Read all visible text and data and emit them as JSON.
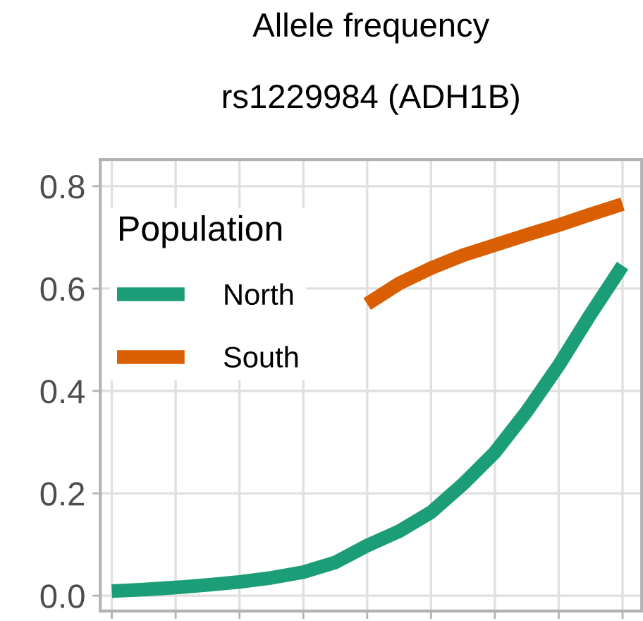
{
  "chart_data": {
    "type": "line",
    "title": "Allele frequency",
    "subtitle": "rs1229984 (ADH1B)",
    "legend_title": "Population",
    "categories": [
      null,
      null,
      null,
      null,
      null,
      null,
      null,
      null,
      null,
      null,
      null,
      null,
      null,
      null,
      null,
      null,
      null
    ],
    "series": [
      {
        "name": "North",
        "color": "#1b9e77",
        "values": [
          0.009,
          0.012,
          0.016,
          0.021,
          0.027,
          0.035,
          0.046,
          0.065,
          0.098,
          0.126,
          0.163,
          0.218,
          0.28,
          0.36,
          0.45,
          0.55,
          0.645
        ]
      },
      {
        "name": "South",
        "color": "#d95f02",
        "values": [
          null,
          null,
          null,
          null,
          null,
          null,
          null,
          null,
          0.57,
          0.61,
          0.64,
          0.665,
          0.685,
          0.705,
          0.724,
          0.745,
          0.765
        ]
      }
    ],
    "ylim": [
      -0.03,
      0.852
    ],
    "yticks": [
      {
        "value": 0,
        "label": "0.0"
      },
      {
        "value": 0.2,
        "label": "0.2"
      },
      {
        "value": 0.4,
        "label": "0.4"
      },
      {
        "value": 0.6,
        "label": "0.6"
      },
      {
        "value": 0.8,
        "label": "0.8"
      }
    ],
    "grid": true,
    "legend": "top left",
    "line_style": "solid"
  }
}
